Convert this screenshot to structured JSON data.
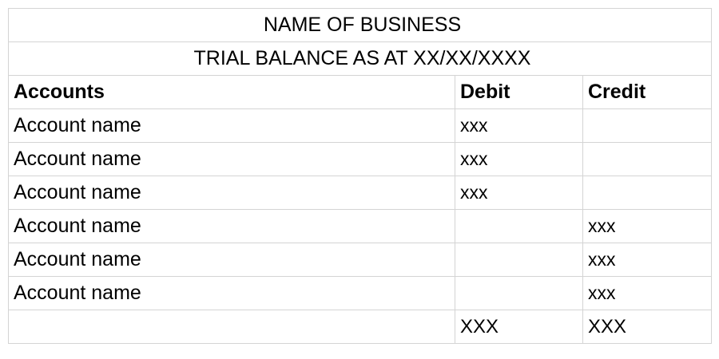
{
  "sheet": {
    "business_name": "NAME OF BUSINESS",
    "title": "TRIAL BALANCE AS AT XX/XX/XXXX",
    "columns": [
      "Accounts",
      "Debit",
      "Credit"
    ],
    "rows": [
      {
        "account": "Account name",
        "debit": "xxx",
        "credit": ""
      },
      {
        "account": "Account name",
        "debit": "xxx",
        "credit": ""
      },
      {
        "account": "Account name",
        "debit": "xxx",
        "credit": ""
      },
      {
        "account": "Account name",
        "debit": "",
        "credit": "xxx"
      },
      {
        "account": "Account name",
        "debit": "",
        "credit": "xxx"
      },
      {
        "account": "Account name",
        "debit": "",
        "credit": "xxx"
      }
    ],
    "totals": {
      "account": "",
      "debit": "XXX",
      "credit": "XXX"
    }
  }
}
